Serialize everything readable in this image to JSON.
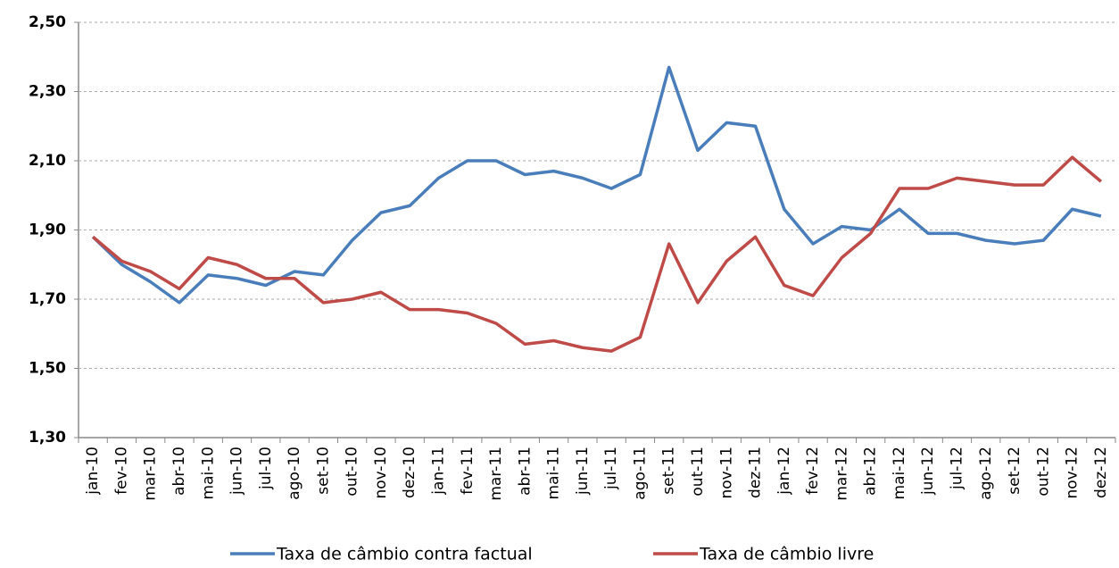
{
  "chart_data": {
    "type": "line",
    "categories": [
      "jan-10",
      "fev-10",
      "mar-10",
      "abr-10",
      "mai-10",
      "jun-10",
      "jul-10",
      "ago-10",
      "set-10",
      "out-10",
      "nov-10",
      "dez-10",
      "jan-11",
      "fev-11",
      "mar-11",
      "abr-11",
      "mai-11",
      "jun-11",
      "jul-11",
      "ago-11",
      "set-11",
      "out-11",
      "nov-11",
      "dez-11",
      "jan-12",
      "fev-12",
      "mar-12",
      "abr-12",
      "mai-12",
      "jun-12",
      "jul-12",
      "ago-12",
      "set-12",
      "out-12",
      "nov-12",
      "dez-12"
    ],
    "series": [
      {
        "name": "Taxa de câmbio contra factual",
        "color": "#4a7ebb",
        "values": [
          1.88,
          1.8,
          1.75,
          1.69,
          1.77,
          1.76,
          1.74,
          1.78,
          1.77,
          1.87,
          1.95,
          1.97,
          2.05,
          2.1,
          2.1,
          2.06,
          2.07,
          2.05,
          2.02,
          2.06,
          2.37,
          2.13,
          2.21,
          2.2,
          1.96,
          1.86,
          1.91,
          1.9,
          1.96,
          1.89,
          1.89,
          1.87,
          1.86,
          1.87,
          1.96,
          1.94
        ]
      },
      {
        "name": "Taxa de câmbio livre",
        "color": "#be4b48",
        "values": [
          1.88,
          1.81,
          1.78,
          1.73,
          1.82,
          1.8,
          1.76,
          1.76,
          1.69,
          1.7,
          1.72,
          1.67,
          1.67,
          1.66,
          1.63,
          1.57,
          1.58,
          1.56,
          1.55,
          1.59,
          1.86,
          1.69,
          1.81,
          1.88,
          1.74,
          1.71,
          1.82,
          1.89,
          2.02,
          2.02,
          2.05,
          2.04,
          2.03,
          2.03,
          2.11,
          2.04
        ]
      }
    ],
    "ylim": [
      1.3,
      2.5
    ],
    "yticks": [
      {
        "value": 1.3,
        "label": "1,30"
      },
      {
        "value": 1.5,
        "label": "1,50"
      },
      {
        "value": 1.7,
        "label": "1,70"
      },
      {
        "value": 1.9,
        "label": "1,90"
      },
      {
        "value": 2.1,
        "label": "2,10"
      },
      {
        "value": 2.3,
        "label": "2,30"
      },
      {
        "value": 2.5,
        "label": "2,50"
      }
    ],
    "grid": true
  }
}
